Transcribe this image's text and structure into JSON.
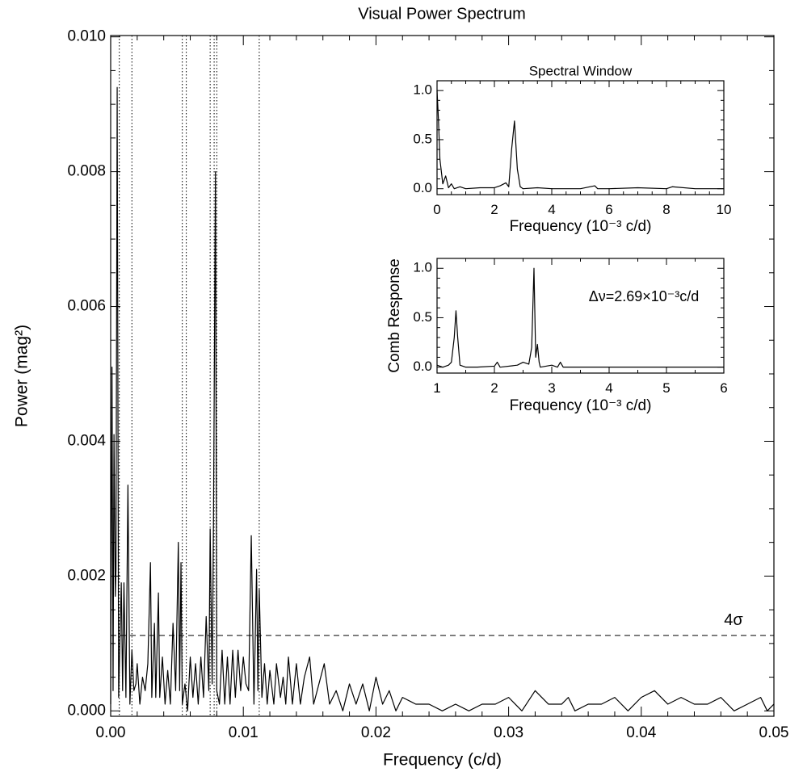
{
  "chart_data": [
    {
      "type": "line",
      "title": "Visual Power Spectrum",
      "xlabel": "Frequency (c/d)",
      "ylabel": "Power (mag²)",
      "color": "#000000",
      "xlim": [
        0,
        0.05
      ],
      "ylim": [
        -8e-05,
        0.01002
      ],
      "xticks": [
        {
          "value": 0,
          "label": "0.00"
        },
        0.01,
        0.02,
        0.03,
        0.04,
        0.05
      ],
      "yticks": [
        {
          "value": 0,
          "label": "0.000"
        },
        {
          "value": 0.002,
          "label": "0.002"
        },
        {
          "value": 0.004,
          "label": "0.004"
        },
        {
          "value": 0.006,
          "label": "0.006"
        },
        {
          "value": 0.008,
          "label": "0.008"
        },
        {
          "value": 0.01,
          "label": "0.010"
        }
      ],
      "hline": {
        "value": 0.00112,
        "label": "4σ"
      },
      "vlines": [
        0.00065,
        0.0016,
        0.0054,
        0.0057,
        0.0075,
        0.0078,
        0.008,
        0.0112
      ],
      "x": [
        0,
        0.0001,
        0.00018,
        0.00025,
        0.00035,
        0.0004,
        0.00049,
        0.0006,
        0.0008,
        0.0009,
        0.001,
        0.00115,
        0.0013,
        0.00145,
        0.0016,
        0.00175,
        0.0019,
        0.002,
        0.0022,
        0.0024,
        0.0026,
        0.0028,
        0.003,
        0.0031,
        0.0033,
        0.0034,
        0.0036,
        0.0037,
        0.0039,
        0.0041,
        0.0043,
        0.0045,
        0.0047,
        0.0049,
        0.0051,
        0.0052,
        0.0053,
        0.0054,
        0.0056,
        0.0058,
        0.006,
        0.0062,
        0.0064,
        0.0066,
        0.0068,
        0.007,
        0.0072,
        0.0074,
        0.0075,
        0.00765,
        0.00775,
        0.0079,
        0.008,
        0.0082,
        0.0084,
        0.0086,
        0.0088,
        0.009,
        0.0092,
        0.0094,
        0.0096,
        0.0098,
        0.01,
        0.0102,
        0.0104,
        0.0106,
        0.0108,
        0.011,
        0.0111,
        0.0112,
        0.0114,
        0.0116,
        0.0118,
        0.012,
        0.0123,
        0.0125,
        0.0128,
        0.013,
        0.0132,
        0.0134,
        0.0137,
        0.014,
        0.0143,
        0.0146,
        0.015,
        0.0153,
        0.0157,
        0.0161,
        0.0165,
        0.017,
        0.0175,
        0.018,
        0.0185,
        0.019,
        0.0195,
        0.02,
        0.0205,
        0.021,
        0.0215,
        0.022,
        0.023,
        0.024,
        0.025,
        0.026,
        0.027,
        0.028,
        0.029,
        0.03,
        0.031,
        0.032,
        0.033,
        0.034,
        0.0345,
        0.035,
        0.036,
        0.037,
        0.038,
        0.039,
        0.04,
        0.041,
        0.042,
        0.043,
        0.044,
        0.045,
        0.046,
        0.047,
        0.048,
        0.049,
        0.0495,
        0.05
      ],
      "values": [
        0.0001,
        0.0051,
        0.0003,
        0.0041,
        0.0017,
        0.0021,
        0.00925,
        0.0002,
        0.0019,
        0.0003,
        0.0019,
        0.0002,
        0.00335,
        0.0001,
        0.0009,
        0.0003,
        0.0004,
        0.0007,
        0.0001,
        0.0005,
        0.0003,
        0.0007,
        0.0022,
        0.0002,
        0.0013,
        0.0002,
        0.00175,
        0.0002,
        0.0008,
        0.0001,
        0.0006,
        0.0001,
        0.0013,
        0.0003,
        0.0025,
        0.0003,
        0.0022,
        0.0001,
        0.0004,
        0,
        0.0008,
        0.0002,
        0.0007,
        0.0001,
        0.0008,
        0.0002,
        0.0014,
        0.0003,
        0.0027,
        0.0004,
        0.0028,
        0.008,
        0.0003,
        0.0001,
        0.0009,
        0.0001,
        0.0008,
        0.0001,
        0.0009,
        0.0002,
        0.0009,
        0.0003,
        0.0008,
        0.0004,
        0.0003,
        0.0026,
        0.0001,
        0.0021,
        0.0003,
        0.0018,
        0.0002,
        0.0007,
        0.0001,
        0.0006,
        0.0001,
        0.0007,
        0.0002,
        0.0005,
        0.0001,
        0.0008,
        0.0001,
        0.0007,
        0.0001,
        0.0005,
        0.0008,
        0.0001,
        0.0004,
        0.0007,
        0.0001,
        0.0003,
        0,
        0.0004,
        0.0001,
        0.0004,
        0,
        0.0005,
        0.0001,
        0.0003,
        0,
        0.0002,
        0.0001,
        0.0001,
        0,
        0.0001,
        0,
        0.0001,
        0.0001,
        0.0002,
        0,
        0.0003,
        0.0001,
        0.0001,
        0.0002,
        0,
        0.0001,
        0.0001,
        0.0002,
        0,
        0.0002,
        0.0003,
        0.0001,
        0.0002,
        0.0001,
        0.0001,
        0.0002,
        0,
        0.0001,
        0.0002,
        0,
        0.0001
      ]
    },
    {
      "type": "line",
      "title": "Spectral Window",
      "xlabel": "Frequency (10⁻³ c/d)",
      "color": "#000000",
      "xlim": [
        0,
        10
      ],
      "ylim": [
        -0.06,
        1.1
      ],
      "xticks": [
        0,
        2,
        4,
        6,
        8,
        10
      ],
      "yticks": [
        {
          "value": 0,
          "label": "0.0"
        },
        0.5,
        {
          "value": 1,
          "label": "1.0"
        }
      ],
      "x": [
        0,
        0.05,
        0.1,
        0.2,
        0.3,
        0.4,
        0.5,
        0.6,
        0.8,
        1,
        1.5,
        2,
        2.2,
        2.4,
        2.5,
        2.6,
        2.7,
        2.8,
        2.9,
        3,
        3.5,
        4,
        5,
        5.5,
        5.6,
        6,
        7,
        8,
        8.2,
        9,
        10
      ],
      "values": [
        1.0,
        0.7,
        0.3,
        0.05,
        0.13,
        0.01,
        0.05,
        0.0,
        0.02,
        0.0,
        0.01,
        0.01,
        0.03,
        0.06,
        0.02,
        0.4,
        0.69,
        0.2,
        0.02,
        0.0,
        0.01,
        0.0,
        0.0,
        0.03,
        0.0,
        0.0,
        0.01,
        0.0,
        0.02,
        0.0,
        0.0
      ]
    },
    {
      "type": "line",
      "xlabel": "Frequency (10⁻³ c/d)",
      "ylabel": "Comb Response",
      "annotation": "Δν=2.69×10⁻³c/d",
      "color": "#000000",
      "xlim": [
        1,
        6
      ],
      "ylim": [
        -0.06,
        1.1
      ],
      "xticks": [
        1,
        2,
        3,
        4,
        5,
        6
      ],
      "yticks": [
        {
          "value": 0,
          "label": "0.0"
        },
        0.5,
        {
          "value": 1,
          "label": "1.0"
        }
      ],
      "x": [
        1,
        1.1,
        1.2,
        1.25,
        1.3,
        1.33,
        1.36,
        1.4,
        1.5,
        1.7,
        2,
        2.05,
        2.1,
        2.4,
        2.5,
        2.6,
        2.65,
        2.69,
        2.72,
        2.75,
        2.78,
        2.8,
        2.9,
        3.0,
        3.1,
        3.15,
        3.2,
        3.5,
        4,
        5,
        6
      ],
      "values": [
        0.02,
        0.0,
        0.02,
        0.05,
        0.3,
        0.57,
        0.3,
        0.02,
        0.0,
        0.0,
        0.01,
        0.05,
        0.0,
        0.02,
        0.05,
        0.03,
        0.2,
        1.0,
        0.1,
        0.23,
        0.05,
        0.0,
        0.01,
        0.02,
        0.0,
        0.05,
        0.0,
        0.0,
        0.0,
        0.0,
        0.0
      ]
    }
  ]
}
